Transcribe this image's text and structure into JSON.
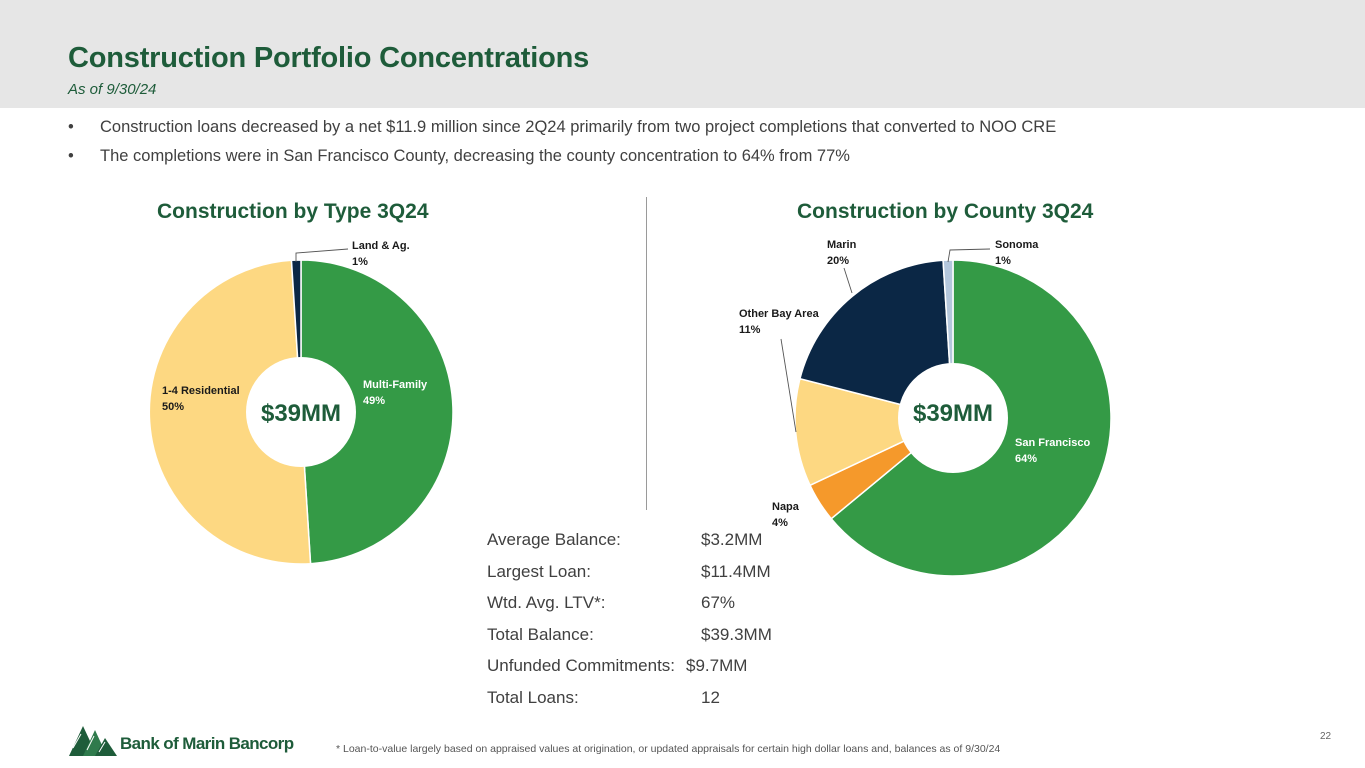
{
  "header": {
    "title": "Construction Portfolio Concentrations",
    "subtitle": "As of 9/30/24"
  },
  "bullets": [
    "Construction loans decreased by a net $11.9 million since 2Q24 primarily from two project completions that converted to NOO CRE",
    "The completions were in San Francisco County, decreasing the county concentration to 64% from 77%"
  ],
  "bullet_symbol": "•",
  "chart_data": [
    {
      "type": "pie",
      "title": "Construction by Type 3Q24",
      "center_label": "$39MM",
      "slices": [
        {
          "name": "Multi-Family",
          "value": 49,
          "label": "49%",
          "color": "#349a46"
        },
        {
          "name": "1-4 Residential",
          "value": 50,
          "label": "50%",
          "color": "#fdd882"
        },
        {
          "name": "Land & Ag.",
          "value": 1,
          "label": "1%",
          "color": "#0b2745"
        }
      ]
    },
    {
      "type": "pie",
      "title": "Construction by County 3Q24",
      "center_label": "$39MM",
      "slices": [
        {
          "name": "San Francisco",
          "value": 64,
          "label": "64%",
          "color": "#349a46"
        },
        {
          "name": "Napa",
          "value": 4,
          "label": "4%",
          "color": "#f5992b"
        },
        {
          "name": "Other Bay Area",
          "value": 11,
          "label": "11%",
          "color": "#fdd882"
        },
        {
          "name": "Marin",
          "value": 20,
          "label": "20%",
          "color": "#0b2745"
        },
        {
          "name": "Sonoma",
          "value": 1,
          "label": "1%",
          "color": "#b4c7dc"
        }
      ]
    }
  ],
  "stats": [
    {
      "label": "Average Balance:",
      "value": "$3.2MM"
    },
    {
      "label": "Largest Loan:",
      "value": "$11.4MM"
    },
    {
      "label": "Wtd. Avg. LTV*:",
      "value": "67%"
    },
    {
      "label": "Total Balance:",
      "value": "$39.3MM"
    },
    {
      "label": "Unfunded Commitments:",
      "value": "$9.7MM"
    },
    {
      "label": "Total Loans:",
      "value": "12"
    }
  ],
  "footnote": "*  Loan-to-value largely based on appraised values at origination, or updated appraisals for certain high dollar loans and, balances as of 9/30/24",
  "page_number": "22",
  "logo": {
    "text": "Bank of Marin Bancorp",
    "icon": "trees-logo-icon"
  },
  "colors": {
    "brand_green": "#1e5c3a",
    "header_bg": "#e6e6e6"
  }
}
